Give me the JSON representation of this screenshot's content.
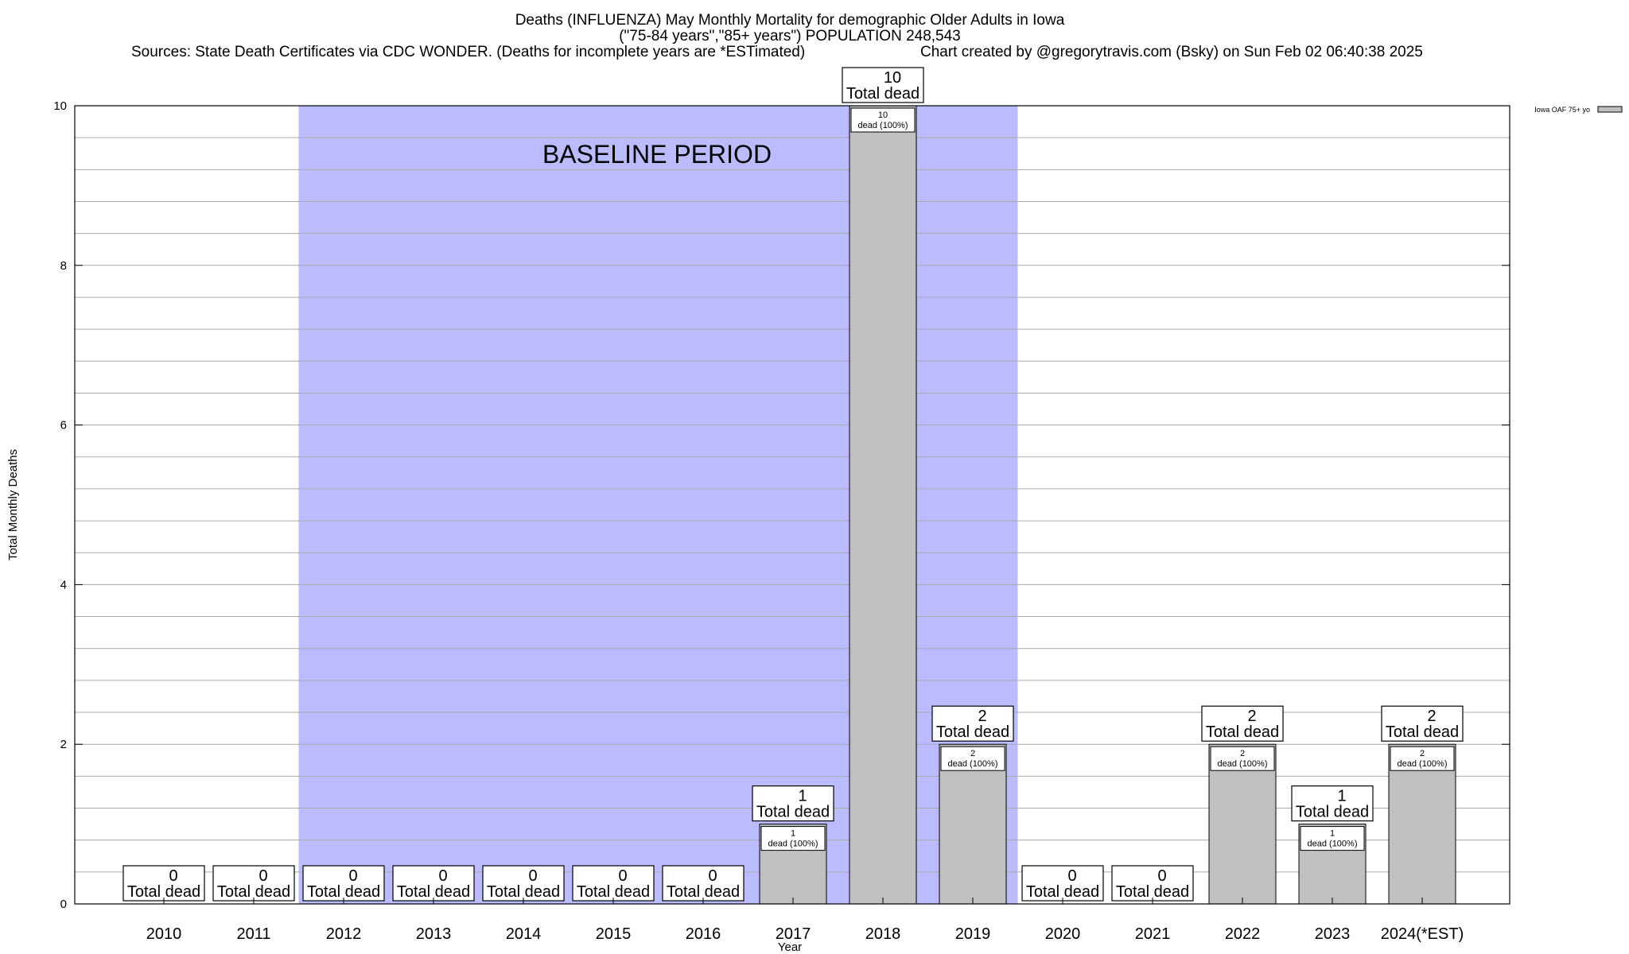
{
  "chart_data": {
    "type": "bar",
    "title_lines": [
      "Deaths (INFLUENZA) May Monthly Mortality for demographic Older Adults in Iowa",
      "(\"75-84 years\",\"85+ years\") POPULATION 248,543"
    ],
    "sources": "Sources: State Death Certificates via CDC WONDER. (Deaths for incomplete years are *ESTimated)",
    "credit": "Chart created by @gregorytravis.com (Bsky) on Sun Feb 02 06:40:38 2025",
    "xlabel": "Year",
    "ylabel": "Total Monthly Deaths",
    "ylim": [
      0,
      10
    ],
    "yticks": [
      "0",
      "2",
      "4",
      "6",
      "8",
      "10"
    ],
    "grid": true,
    "legend": {
      "label": "Iowa OAF 75+ yo",
      "position": "top-right",
      "color": "#c0c0c0"
    },
    "categories": [
      "2010",
      "2011",
      "2012",
      "2013",
      "2014",
      "2015",
      "2016",
      "2017",
      "2018",
      "2019",
      "2020",
      "2021",
      "2022",
      "2023",
      "2024(*EST)"
    ],
    "series": [
      {
        "name": "Iowa OAF 75+ yo",
        "color": "#c0c0c0",
        "values": [
          0,
          0,
          0,
          0,
          0,
          0,
          0,
          1,
          10,
          2,
          0,
          0,
          2,
          1,
          2
        ]
      }
    ],
    "top_labels": [
      [
        "0",
        "Total dead"
      ],
      [
        "0",
        "Total dead"
      ],
      [
        "0",
        "Total dead"
      ],
      [
        "0",
        "Total dead"
      ],
      [
        "0",
        "Total dead"
      ],
      [
        "0",
        "Total dead"
      ],
      [
        "0",
        "Total dead"
      ],
      [
        "1",
        "Total dead"
      ],
      [
        "10",
        "Total dead"
      ],
      [
        "2",
        "Total dead"
      ],
      [
        "0",
        "Total dead"
      ],
      [
        "0",
        "Total dead"
      ],
      [
        "2",
        "Total dead"
      ],
      [
        "1",
        "Total dead"
      ],
      [
        "2",
        "Total dead"
      ]
    ],
    "inner_labels": [
      null,
      null,
      null,
      null,
      null,
      null,
      null,
      [
        "1",
        "dead (100%)"
      ],
      [
        "10",
        "dead (100%)"
      ],
      [
        "2",
        "dead (100%)"
      ],
      null,
      null,
      [
        "2",
        "dead (100%)"
      ],
      [
        "1",
        "dead (100%)"
      ],
      [
        "2",
        "dead (100%)"
      ]
    ],
    "baseline": {
      "label": "BASELINE PERIOD",
      "from_index": 2,
      "to_index": 9,
      "color": "#bbbbff"
    }
  }
}
